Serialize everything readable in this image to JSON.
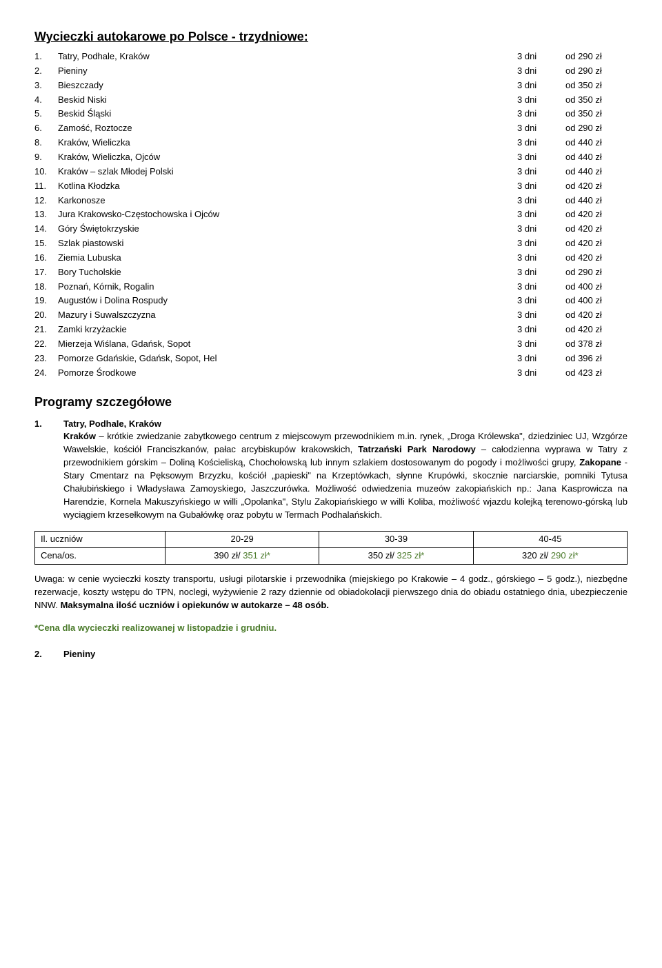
{
  "title": "Wycieczki autokarowe po Polsce  - trzydniowe:",
  "tours": [
    {
      "n": "1.",
      "name": "Tatry, Podhale, Kraków",
      "dur": "3 dni",
      "price": "od 290 zł"
    },
    {
      "n": "2.",
      "name": "Pieniny",
      "dur": "3 dni",
      "price": "od 290 zł"
    },
    {
      "n": "3.",
      "name": "Bieszczady",
      "dur": "3 dni",
      "price": "od 350 zł"
    },
    {
      "n": "4.",
      "name": "Beskid Niski",
      "dur": "3 dni",
      "price": "od 350 zł"
    },
    {
      "n": "5.",
      "name": "Beskid Śląski",
      "dur": "3 dni",
      "price": "od 350 zł"
    },
    {
      "n": "6.",
      "name": "Zamość, Roztocze",
      "dur": "3 dni",
      "price": "od 290 zł"
    },
    {
      "n": "8.",
      "name": "Kraków, Wieliczka",
      "dur": "3 dni",
      "price": "od 440 zł"
    },
    {
      "n": "9.",
      "name": "Kraków, Wieliczka, Ojców",
      "dur": "3 dni",
      "price": "od 440 zł"
    },
    {
      "n": "10.",
      "name": "Kraków – szlak Młodej Polski",
      "dur": "3 dni",
      "price": "od 440 zł"
    },
    {
      "n": "11.",
      "name": "Kotlina Kłodzka",
      "dur": "3 dni",
      "price": "od 420 zł"
    },
    {
      "n": "12.",
      "name": "Karkonosze",
      "dur": "3 dni",
      "price": "od 440 zł"
    },
    {
      "n": "13.",
      "name": "Jura Krakowsko-Częstochowska i Ojców",
      "dur": "3 dni",
      "price": "od 420 zł"
    },
    {
      "n": "14.",
      "name": "Góry Świętokrzyskie",
      "dur": "3 dni",
      "price": "od 420 zł"
    },
    {
      "n": "15.",
      "name": "Szlak piastowski",
      "dur": "3 dni",
      "price": "od 420 zł"
    },
    {
      "n": "16.",
      "name": "Ziemia Lubuska",
      "dur": "3 dni",
      "price": "od 420 zł"
    },
    {
      "n": "17.",
      "name": "Bory Tucholskie",
      "dur": "3 dni",
      "price": "od 290 zł"
    },
    {
      "n": "18.",
      "name": "Poznań, Kórnik, Rogalin",
      "dur": "3 dni",
      "price": "od 400 zł"
    },
    {
      "n": "19.",
      "name": "Augustów i Dolina Rospudy",
      "dur": "3 dni",
      "price": "od 400 zł"
    },
    {
      "n": "20.",
      "name": "Mazury i Suwalszczyzna",
      "dur": "3 dni",
      "price": "od 420 zł"
    },
    {
      "n": "21.",
      "name": "Zamki krzyżackie",
      "dur": "3 dni",
      "price": "od 420 zł"
    },
    {
      "n": "22.",
      "name": "Mierzeja Wiślana, Gdańsk, Sopot",
      "dur": "3 dni",
      "price": "od 378 zł"
    },
    {
      "n": "23.",
      "name": "Pomorze Gdańskie, Gdańsk, Sopot, Hel",
      "dur": "3 dni",
      "price": "od 396 zł"
    },
    {
      "n": "24.",
      "name": "Pomorze Środkowe",
      "dur": "3 dni",
      "price": "od 423 zł"
    }
  ],
  "programs_heading": "Programy szczegółowe",
  "detail1": {
    "num": "1.",
    "title": "Tatry, Podhale, Kraków",
    "body_parts": [
      {
        "b": true,
        "t": "Kraków"
      },
      {
        "b": false,
        "t": " – krótkie zwiedzanie zabytkowego centrum z miejscowym przewodnikiem m.in. rynek, „Droga Królewska\", dziedziniec UJ, Wzgórze Wawelskie, kościół Franciszkanów, pałac arcybiskupów krakowskich, "
      },
      {
        "b": true,
        "t": "Tatrzański Park Narodowy"
      },
      {
        "b": false,
        "t": " – całodzienna wyprawa w Tatry z przewodnikiem górskim – Doliną Kościeliską, Chochołowską lub innym szlakiem dostosowanym do pogody i możliwości grupy, "
      },
      {
        "b": true,
        "t": "Zakopane"
      },
      {
        "b": false,
        "t": " - Stary Cmentarz na Pęksowym Brzyzku, kościół „papieski\" na Krzeptówkach, słynne Krupówki, skocznie narciarskie, pomniki Tytusa Chałubińskiego i Władysława Zamoyskiego, Jaszczurówka. Możliwość odwiedzenia muzeów zakopiańskich np.: Jana Kasprowicza na Harendzie, Kornela Makuszyńskiego w willi „Opolanka\", Stylu Zakopiańskiego w willi Koliba, możliwość wjazdu kolejką terenowo-górską lub wyciągiem krzesełkowym na Gubałówkę oraz pobytu w Termach Podhalańskich."
      }
    ]
  },
  "table": {
    "row1": [
      "Il. uczniów",
      "20-29",
      "30-39",
      "40-45"
    ],
    "row2_label": "Cena/os.",
    "row2": [
      {
        "a": "390 zł/ ",
        "b": "351 zł*"
      },
      {
        "a": "350 zł/ ",
        "b": "325 zł*"
      },
      {
        "a": "320 zł/ ",
        "b": "290 zł*"
      }
    ]
  },
  "note_parts": [
    {
      "b": false,
      "t": "Uwaga: w cenie wycieczki koszty transportu, usługi pilotarskie i przewodnika (miejskiego po Krakowie – 4 godz., górskiego – 5 godz.), niezbędne rezerwacje, koszty wstępu do TPN, noclegi, wyżywienie 2 razy dziennie od obiadokolacji pierwszego dnia do obiadu ostatniego dnia, ubezpieczenie NNW. "
    },
    {
      "b": true,
      "t": "Maksymalna ilość uczniów i opiekunów w autokarze – 48 osób."
    }
  ],
  "footnote": "*Cena dla wycieczki realizowanej w listopadzie i grudniu.",
  "next": {
    "num": "2.",
    "title": "Pieniny"
  },
  "colors": {
    "green": "#4a7a2a"
  }
}
